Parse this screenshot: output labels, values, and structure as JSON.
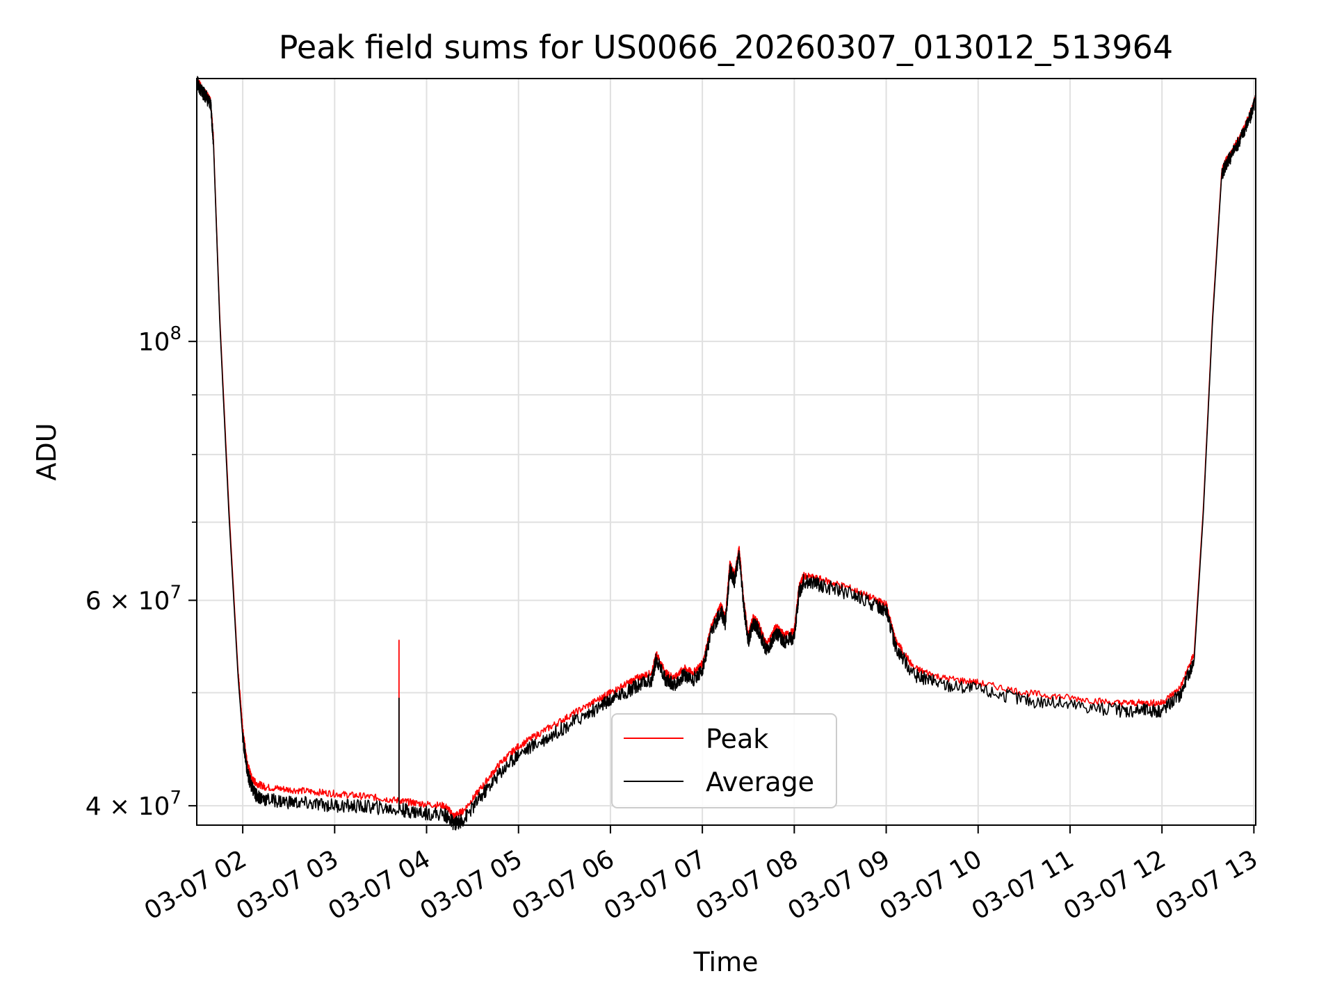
{
  "chart_data": {
    "type": "line",
    "title": "Peak field sums for US0066_20260307_013012_513964",
    "xlabel": "Time",
    "ylabel": "ADU",
    "x_unit": "hours (day 2026-03-07)",
    "xlim": [
      1.5,
      13.02
    ],
    "ylim": [
      38500000,
      168000000
    ],
    "yscale": "log",
    "grid": true,
    "legend_position": "lower-center",
    "x_ticks": [
      {
        "value": 2,
        "label": "03-07 02"
      },
      {
        "value": 3,
        "label": "03-07 03"
      },
      {
        "value": 4,
        "label": "03-07 04"
      },
      {
        "value": 5,
        "label": "03-07 05"
      },
      {
        "value": 6,
        "label": "03-07 06"
      },
      {
        "value": 7,
        "label": "03-07 07"
      },
      {
        "value": 8,
        "label": "03-07 08"
      },
      {
        "value": 9,
        "label": "03-07 09"
      },
      {
        "value": 10,
        "label": "03-07 10"
      },
      {
        "value": 11,
        "label": "03-07 11"
      },
      {
        "value": 12,
        "label": "03-07 12"
      },
      {
        "value": 13,
        "label": "03-07 13"
      }
    ],
    "y_major_ticks": [
      {
        "value": 40000000,
        "mantissa": "4",
        "exponent": "7"
      },
      {
        "value": 60000000,
        "mantissa": "6",
        "exponent": "7"
      },
      {
        "value": 100000000,
        "mantissa": "",
        "exponent": "8"
      }
    ],
    "y_minor_ticks": [
      50000000,
      70000000,
      80000000,
      90000000
    ],
    "series": [
      {
        "name": "Peak",
        "color": "#ff0000",
        "x": [
          1.5,
          1.55,
          1.6,
          1.65,
          1.68,
          1.75,
          1.85,
          1.95,
          2.0,
          2.05,
          2.1,
          2.15,
          2.25,
          2.5,
          2.8,
          3.1,
          3.4,
          3.7,
          3.9,
          4.2,
          4.3,
          4.4,
          4.6,
          4.8,
          5.0,
          5.3,
          5.6,
          5.9,
          6.0,
          6.2,
          6.3,
          6.45,
          6.5,
          6.6,
          6.7,
          6.8,
          6.9,
          7.0,
          7.1,
          7.2,
          7.25,
          7.3,
          7.35,
          7.4,
          7.45,
          7.5,
          7.55,
          7.6,
          7.7,
          7.8,
          7.9,
          8.0,
          8.05,
          8.1,
          8.3,
          8.6,
          8.9,
          9.0,
          9.1,
          9.3,
          9.6,
          10.0,
          10.5,
          11.0,
          11.5,
          11.8,
          12.0,
          12.2,
          12.35,
          12.45,
          12.55,
          12.65,
          12.7,
          12.75,
          12.85,
          12.95,
          13.02
        ],
        "values": [
          168000000,
          165000000,
          163000000,
          161000000,
          150000000,
          105000000,
          72000000,
          52000000,
          46500000,
          43500000,
          42200000,
          41800000,
          41500000,
          41300000,
          41100000,
          40900000,
          40700000,
          40400000,
          40200000,
          40000000,
          39200000,
          39600000,
          41500000,
          43500000,
          45000000,
          46500000,
          48000000,
          49500000,
          50000000,
          51000000,
          51500000,
          52000000,
          54000000,
          52000000,
          51500000,
          52500000,
          52000000,
          53000000,
          57000000,
          59500000,
          58000000,
          64500000,
          63000000,
          66500000,
          60000000,
          56000000,
          58000000,
          57500000,
          55000000,
          57000000,
          56000000,
          56500000,
          61500000,
          63000000,
          62500000,
          61500000,
          60000000,
          59500000,
          55500000,
          52500000,
          51500000,
          51000000,
          50000000,
          49500000,
          49000000,
          49000000,
          49000000,
          50500000,
          54000000,
          72000000,
          105000000,
          140000000,
          143000000,
          145000000,
          150000000,
          156000000,
          162000000
        ]
      },
      {
        "name": "Average",
        "color": "#000000",
        "x": [
          1.5,
          1.55,
          1.6,
          1.65,
          1.68,
          1.75,
          1.85,
          1.95,
          2.0,
          2.05,
          2.1,
          2.15,
          2.25,
          2.5,
          2.8,
          3.1,
          3.4,
          3.7,
          3.9,
          4.2,
          4.3,
          4.4,
          4.6,
          4.8,
          5.0,
          5.3,
          5.6,
          5.9,
          6.0,
          6.2,
          6.3,
          6.45,
          6.5,
          6.6,
          6.7,
          6.8,
          6.9,
          7.0,
          7.1,
          7.2,
          7.25,
          7.3,
          7.35,
          7.4,
          7.45,
          7.5,
          7.55,
          7.6,
          7.7,
          7.8,
          7.9,
          8.0,
          8.05,
          8.1,
          8.3,
          8.6,
          8.9,
          9.0,
          9.1,
          9.3,
          9.6,
          10.0,
          10.5,
          11.0,
          11.5,
          11.8,
          12.0,
          12.2,
          12.35,
          12.45,
          12.55,
          12.65,
          12.7,
          12.75,
          12.85,
          12.95,
          13.02
        ],
        "values": [
          167000000,
          164000000,
          162000000,
          160000000,
          149000000,
          104000000,
          71000000,
          51500000,
          45800000,
          42800000,
          41400000,
          40800000,
          40500000,
          40300000,
          40100000,
          40000000,
          39900000,
          39700000,
          39500000,
          39300000,
          38600000,
          38900000,
          40800000,
          42700000,
          44300000,
          45700000,
          47200000,
          48700000,
          49300000,
          50200000,
          50700000,
          51300000,
          53500000,
          51300000,
          50800000,
          51800000,
          51300000,
          52300000,
          56300000,
          58800000,
          57300000,
          63800000,
          62300000,
          65800000,
          59300000,
          55300000,
          57300000,
          56800000,
          54300000,
          56300000,
          55300000,
          55800000,
          60800000,
          62300000,
          61800000,
          60800000,
          59300000,
          58800000,
          54800000,
          51800000,
          50800000,
          50300000,
          49300000,
          48800000,
          48300000,
          48300000,
          48300000,
          49800000,
          53300000,
          71300000,
          104000000,
          139000000,
          142000000,
          144000000,
          149000000,
          155000000,
          161000000
        ]
      }
    ],
    "annotations": [
      {
        "series": "Peak",
        "x": 3.7,
        "spike_value": 55500000,
        "note": "isolated spike"
      },
      {
        "series": "Average",
        "x": 3.7,
        "spike_value": 49500000,
        "note": "isolated spike"
      }
    ]
  }
}
